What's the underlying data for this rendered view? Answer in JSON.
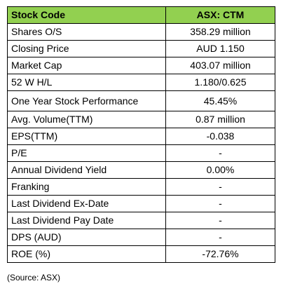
{
  "table": {
    "header": {
      "label": "Stock Code",
      "value": "ASX: CTM"
    },
    "rows": [
      {
        "label": "Shares O/S",
        "value": "358.29 million"
      },
      {
        "label": "Closing Price",
        "value": "AUD 1.150"
      },
      {
        "label": "Market Cap",
        "value": "403.07 million"
      },
      {
        "label": "52 W H/L",
        "value": "1.180/0.625"
      },
      {
        "label": "One Year Stock Performance",
        "value": "45.45%"
      },
      {
        "label": "Avg. Volume(TTM)",
        "value": "0.87 million"
      },
      {
        "label": "EPS(TTM)",
        "value": "-0.038"
      },
      {
        "label": "P/E",
        "value": "-"
      },
      {
        "label": "Annual Dividend Yield",
        "value": "0.00%"
      },
      {
        "label": "Franking",
        "value": "-"
      },
      {
        "label": "Last Dividend  Ex-Date",
        "value": "-"
      },
      {
        "label": "Last Dividend  Pay Date",
        "value": "-"
      },
      {
        "label": "DPS (AUD)",
        "value": "-"
      },
      {
        "label": "ROE (%)",
        "value": "-72.76%"
      }
    ]
  },
  "source_note": "(Source: ASX)",
  "colors": {
    "header_background": "#92d050",
    "border": "#000000"
  }
}
